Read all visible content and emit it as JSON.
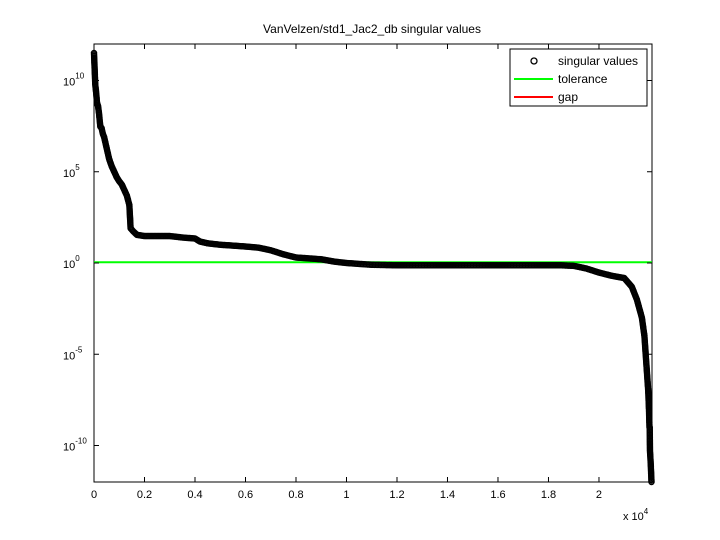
{
  "chart_data": {
    "type": "scatter",
    "title": "VanVelzen/std1_Jac2_db singular values",
    "xlabel": "",
    "ylabel": "",
    "x_scale_note": "x 10^4",
    "x_exponent_base": "x 10",
    "x_exponent": "4",
    "xlim": [
      0,
      22100
    ],
    "ylim": [
      1e-12,
      1000000000000.0
    ],
    "yscale": "log",
    "x_ticks": [
      0,
      2000,
      4000,
      6000,
      8000,
      10000,
      12000,
      14000,
      16000,
      18000,
      20000
    ],
    "x_tick_labels": [
      "0",
      "0.2",
      "0.4",
      "0.6",
      "0.8",
      "1",
      "1.2",
      "1.4",
      "1.6",
      "1.8",
      "2"
    ],
    "y_ticks": [
      1e-10,
      1e-05,
      1,
      100000.0,
      10000000000.0
    ],
    "y_tick_bases": [
      "10",
      "10",
      "10",
      "10",
      "10"
    ],
    "y_tick_exponents": [
      "-10",
      "-5",
      "0",
      "5",
      "10"
    ],
    "grid": false,
    "legend_position": "top-right",
    "series": [
      {
        "name": "singular values",
        "marker": "circle",
        "color": "#000000",
        "points": [
          [
            0,
            320000000000.0
          ],
          [
            50,
            6000000000.0
          ],
          [
            80,
            2500000000.0
          ],
          [
            120,
            600000000.0
          ],
          [
            160,
            400000000.0
          ],
          [
            200,
            150000000.0
          ],
          [
            250,
            30000000.0
          ],
          [
            300,
            25000000.0
          ],
          [
            350,
            12000000.0
          ],
          [
            400,
            8000000.0
          ],
          [
            450,
            4000000.0
          ],
          [
            500,
            2000000.0
          ],
          [
            600,
            500000.0
          ],
          [
            700,
            200000.0
          ],
          [
            800,
            100000.0
          ],
          [
            900,
            50000.0
          ],
          [
            1000,
            30000.0
          ],
          [
            1100,
            20000.0
          ],
          [
            1200,
            10000.0
          ],
          [
            1300,
            5000.0
          ],
          [
            1400,
            1500.0
          ],
          [
            1450,
            80
          ],
          [
            1550,
            55
          ],
          [
            1700,
            35
          ],
          [
            2000,
            30
          ],
          [
            2500,
            30
          ],
          [
            3000,
            30
          ],
          [
            3500,
            25
          ],
          [
            4000,
            22
          ],
          [
            4200,
            15
          ],
          [
            4500,
            12
          ],
          [
            5000,
            10
          ],
          [
            5500,
            9
          ],
          [
            6000,
            8
          ],
          [
            6500,
            7
          ],
          [
            7000,
            5
          ],
          [
            7500,
            3
          ],
          [
            8000,
            2
          ],
          [
            8500,
            1.8
          ],
          [
            9000,
            1.6
          ],
          [
            9500,
            1.2
          ],
          [
            10000,
            1
          ],
          [
            11000,
            0.8
          ],
          [
            12000,
            0.75
          ],
          [
            13000,
            0.75
          ],
          [
            14000,
            0.75
          ],
          [
            15000,
            0.75
          ],
          [
            16000,
            0.75
          ],
          [
            17000,
            0.75
          ],
          [
            18000,
            0.75
          ],
          [
            18500,
            0.75
          ],
          [
            19000,
            0.7
          ],
          [
            19500,
            0.5
          ],
          [
            20000,
            0.3
          ],
          [
            20500,
            0.2
          ],
          [
            21000,
            0.15
          ],
          [
            21300,
            0.05
          ],
          [
            21500,
            0.01
          ],
          [
            21700,
            0.001
          ],
          [
            21800,
            0.0001
          ],
          [
            21900,
            1e-06
          ],
          [
            21950,
            1e-07
          ],
          [
            21980,
            1e-08
          ],
          [
            22000,
            1e-09
          ],
          [
            22010,
            1e-09
          ],
          [
            22020,
            5e-11
          ],
          [
            22030,
            3e-11
          ],
          [
            22050,
            1e-11
          ],
          [
            22080,
            1e-12
          ]
        ]
      },
      {
        "name": "tolerance",
        "type": "line",
        "color": "#00ff00",
        "value": 1.1
      },
      {
        "name": "gap",
        "type": "line",
        "color": "#ff0000",
        "values": []
      }
    ]
  }
}
